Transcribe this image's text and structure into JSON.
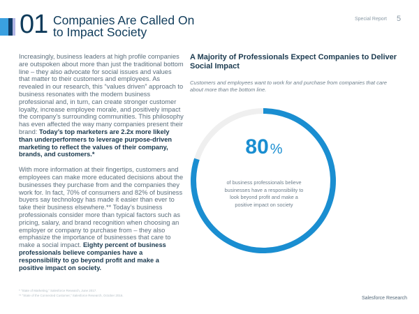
{
  "header": {
    "number": "01",
    "title_line1": "Companies Are Called On",
    "title_line2": "to Impact Society",
    "report": "Special Report",
    "page": "5",
    "bar_colors": [
      "#3aa0e0",
      "#123d66",
      "#b2b6e6"
    ]
  },
  "body": {
    "p1": "Increasingly, business leaders at high profile companies are outspoken about more than just the traditional bottom line – they also advocate for social issues and values that matter to their customers and employees. As revealed in our research, this “values driven” approach to business resonates with the modern business professional and, in turn, can create stronger customer loyalty, increase employee morale, and positively impact the company’s surrounding communities. This philosophy has even affected the way many companies present their brand: ",
    "p1_bold": "Today’s top marketers are 2.2x more likely than underperformers to leverage purpose-driven marketing to reflect the values of their company, brands, and customers.*",
    "p2": "With more information at their fingertips, customers and employees can make more educated decisions about the businesses they purchase from and the companies they work for. In fact, 70% of consumers and 82% of business buyers say technology has made it easier than ever to take their business elsewhere.** Today’s business professionals consider more than typical factors such as pricing, salary, and brand recognition when choosing an employer or company to purchase from – they also emphasize the importance of businesses that care to make a social impact. ",
    "p2_bold": "Eighty percent of business professionals believe companies have a responsibility to go beyond profit and make a positive impact on society."
  },
  "stat": {
    "heading": "A Majority of Professionals Expect Companies to Deliver Social Impact",
    "subheading": "Customers and employees want to work for and purchase from companies that care about more than the bottom line.",
    "value": "80",
    "unit": "%",
    "percent": 80,
    "caption": "of business professionals believe businesses have a responsibility to look beyond profit and make a positive impact on society",
    "ring_color": "#1a8ed1",
    "track_color": "#efefef"
  },
  "footnotes": [
    "*   “State of Marketing,” Salesforce Research, June 2017.",
    "**  “State of the Connected Customer,” Salesforce Research, October 2016."
  ],
  "footer": {
    "brand": "Salesforce Research"
  }
}
